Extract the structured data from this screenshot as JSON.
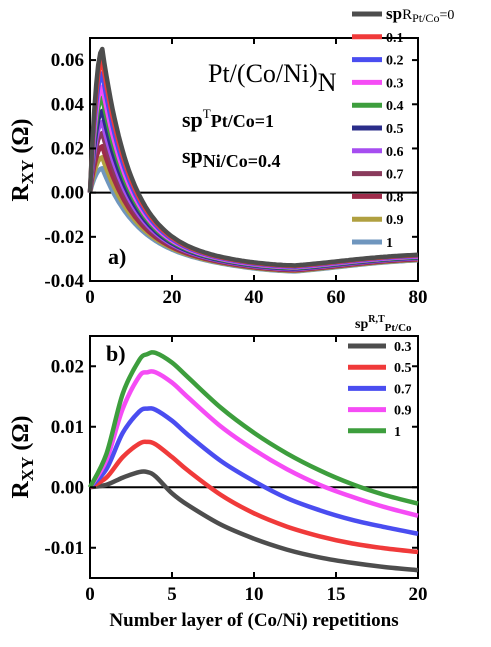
{
  "chart_data": [
    {
      "panel": "a)",
      "type": "line",
      "title": "Pt/(Co/Ni)N",
      "title_main": "Pt/(Co/Ni)",
      "title_sub": "N",
      "ylabel": "RXY (Ω)",
      "ylabel_main": "R",
      "ylabel_sub": "XY",
      "ylabel_unit": " (Ω)",
      "xlim": [
        0,
        80
      ],
      "ylim": [
        -0.04,
        0.07
      ],
      "xticks": [
        0,
        20,
        40,
        60,
        80
      ],
      "yticks": [
        -0.04,
        -0.02,
        0.0,
        0.02,
        0.04,
        0.06
      ],
      "ytick_labels": [
        "-0.04",
        "-0.02",
        "0.00",
        "0.02",
        "0.04",
        "0.06"
      ],
      "annotations": [
        "spTPt/Co=1",
        "spNi/Co=0.4"
      ],
      "annotation_parts": {
        "a1_main": "sp",
        "a1_sup": "T",
        "a1_sub": "Pt/Co",
        "a1_val": "=1",
        "a2_main": "sp",
        "a2_sub": "Ni/Co",
        "a2_val": "=0.4"
      },
      "legend_title": "spRPt/Co=0",
      "legend_title_parts": {
        "main": "sp",
        "r": "R",
        "sub": "Pt/Co",
        "val": "=0"
      },
      "legend_placement": "right",
      "series": [
        {
          "name": "spRPt/Co=0",
          "label": "0",
          "color": "#4d4d4d",
          "peak_x": 3,
          "peak_y": 0.065
        },
        {
          "name": "0.1",
          "label": "0.1",
          "color": "#f03a3a",
          "peak_x": 3,
          "peak_y": 0.06
        },
        {
          "name": "0.2",
          "label": "0.2",
          "color": "#4a4df0",
          "peak_x": 3,
          "peak_y": 0.054
        },
        {
          "name": "0.3",
          "label": "0.3",
          "color": "#f54cf5",
          "peak_x": 3,
          "peak_y": 0.048
        },
        {
          "name": "0.4",
          "label": "0.4",
          "color": "#3d9e3d",
          "peak_x": 3,
          "peak_y": 0.043
        },
        {
          "name": "0.5",
          "label": "0.5",
          "color": "#2b2d8a",
          "peak_x": 3,
          "peak_y": 0.037
        },
        {
          "name": "0.6",
          "label": "0.6",
          "color": "#a64df0",
          "peak_x": 3,
          "peak_y": 0.032
        },
        {
          "name": "0.7",
          "label": "0.7",
          "color": "#8a3a5c",
          "peak_x": 3,
          "peak_y": 0.027
        },
        {
          "name": "0.8",
          "label": "0.8",
          "color": "#9e2b4a",
          "peak_x": 3,
          "peak_y": 0.021
        },
        {
          "name": "0.9",
          "label": "0.9",
          "color": "#b0a040",
          "peak_x": 3,
          "peak_y": 0.016
        },
        {
          "name": "1",
          "label": "1",
          "color": "#6f96be",
          "peak_x": 3,
          "peak_y": 0.011
        }
      ]
    },
    {
      "panel": "b)",
      "type": "line",
      "xlabel": "Number layer of (Co/Ni) repetitions",
      "ylabel": "RXY (Ω)",
      "ylabel_main": "R",
      "ylabel_sub": "XY",
      "ylabel_unit": " (Ω)",
      "xlim": [
        0,
        20
      ],
      "ylim": [
        -0.015,
        0.025
      ],
      "xticks": [
        0,
        5,
        10,
        15,
        20
      ],
      "yticks": [
        -0.01,
        0.0,
        0.01,
        0.02
      ],
      "ytick_labels": [
        "-0.01",
        "0.00",
        "0.01",
        "0.02"
      ],
      "legend_title": "spR,TPt/Co",
      "legend_title_parts": {
        "main": "sp",
        "sup": "R,T",
        "sub": "Pt/Co"
      },
      "legend_placement": "top-right",
      "series": [
        {
          "name": "0.3",
          "label": "0.3",
          "color": "#4d4d4d",
          "x": [
            0,
            1,
            2,
            3,
            3.5,
            4,
            5,
            6,
            8,
            10,
            12,
            14,
            16,
            18,
            20
          ],
          "y": [
            0,
            0.0004,
            0.0016,
            0.0025,
            0.0025,
            0.0018,
            -0.001,
            -0.003,
            -0.0062,
            -0.0085,
            -0.0103,
            -0.0116,
            -0.0125,
            -0.0132,
            -0.0137
          ]
        },
        {
          "name": "0.5",
          "label": "0.5",
          "color": "#f03a3a",
          "x": [
            0,
            1,
            2,
            3,
            3.5,
            4,
            5,
            6,
            8,
            10,
            12,
            14,
            16,
            18,
            20
          ],
          "y": [
            0,
            0.0016,
            0.005,
            0.0072,
            0.0075,
            0.0071,
            0.005,
            0.0027,
            -0.0013,
            -0.0043,
            -0.0065,
            -0.0081,
            -0.0093,
            -0.0101,
            -0.0107
          ]
        },
        {
          "name": "0.7",
          "label": "0.7",
          "color": "#4a4df0",
          "x": [
            0,
            1,
            2,
            3,
            3.5,
            4,
            5,
            6,
            8,
            10,
            12,
            14,
            16,
            18,
            20
          ],
          "y": [
            0,
            0.003,
            0.009,
            0.0125,
            0.013,
            0.0128,
            0.011,
            0.0086,
            0.0043,
            0.001,
            -0.0018,
            -0.0038,
            -0.0054,
            -0.0066,
            -0.0077
          ]
        },
        {
          "name": "0.9",
          "label": "0.9",
          "color": "#f54cf5",
          "x": [
            0,
            1,
            2,
            3,
            3.5,
            4,
            5,
            6,
            8,
            10,
            12,
            14,
            16,
            18,
            20
          ],
          "y": [
            0,
            0.0045,
            0.013,
            0.0183,
            0.019,
            0.019,
            0.0173,
            0.0148,
            0.01,
            0.0062,
            0.003,
            0.0004,
            -0.0016,
            -0.0033,
            -0.0047
          ]
        },
        {
          "name": "1",
          "label": "1",
          "color": "#3d9e3d",
          "x": [
            0,
            1,
            2,
            3,
            3.5,
            4,
            5,
            6,
            8,
            10,
            12,
            14,
            16,
            18,
            20
          ],
          "y": [
            0,
            0.0055,
            0.0155,
            0.021,
            0.022,
            0.0222,
            0.0206,
            0.0181,
            0.0131,
            0.009,
            0.0056,
            0.0028,
            0.0005,
            -0.0013,
            -0.0027
          ]
        }
      ]
    }
  ]
}
